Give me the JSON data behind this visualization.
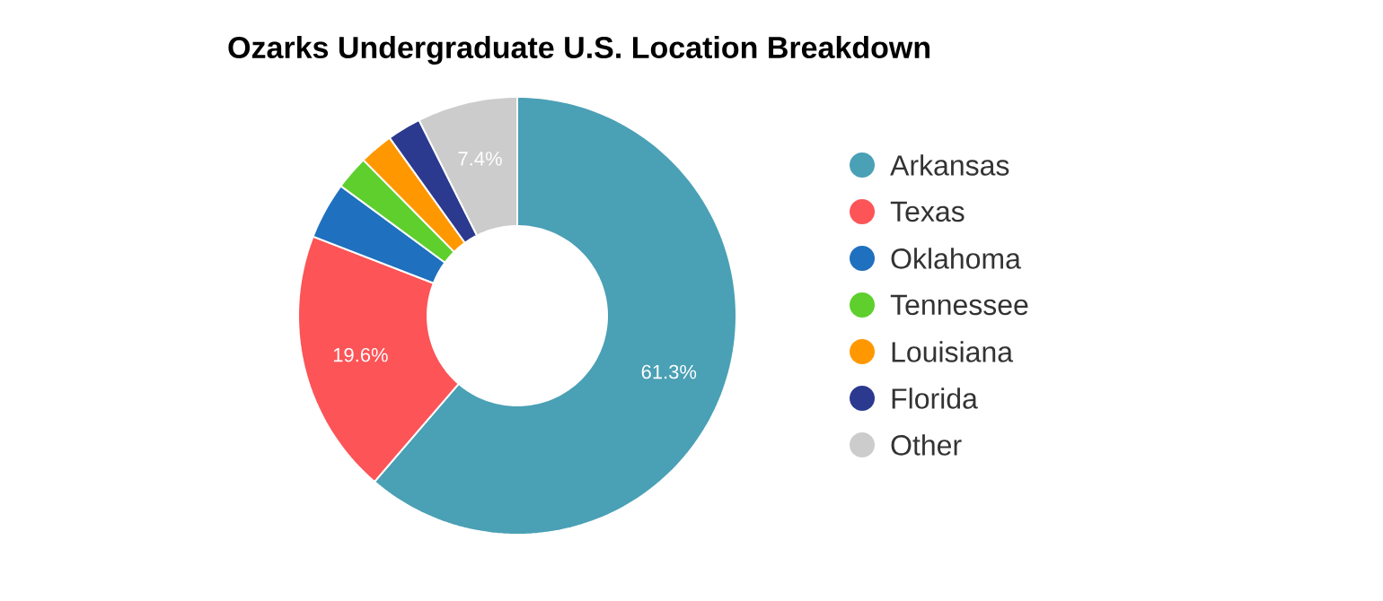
{
  "chart_data": {
    "type": "donut",
    "title": "Ozarks Undergraduate U.S. Location Breakdown",
    "categories": [
      "Arkansas",
      "Texas",
      "Oklahoma",
      "Tennessee",
      "Louisiana",
      "Florida",
      "Other"
    ],
    "values": [
      61.3,
      19.6,
      4.2,
      2.5,
      2.5,
      2.5,
      7.4
    ],
    "value_labels": [
      "61.3%",
      "19.6%",
      null,
      null,
      null,
      null,
      "7.4%"
    ],
    "colors": [
      "#4aa0b5",
      "#fc5457",
      "#1f70be",
      "#5ecf2c",
      "#ff9800",
      "#2b3a8f",
      "#cccccc"
    ],
    "legend": "right"
  }
}
